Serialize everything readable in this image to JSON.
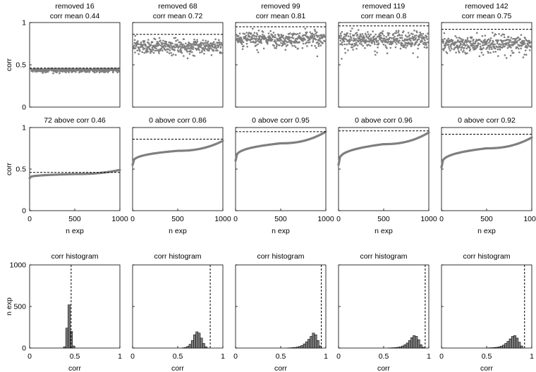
{
  "chart_data": {
    "type": "figure-grid",
    "rows": [
      {
        "kind": "scatter",
        "ylabel": "corr",
        "ylim": [
          0,
          1
        ],
        "yticks": [
          0,
          0.5,
          1
        ],
        "panels": [
          {
            "title1": "removed 16",
            "title2": "corr mean 0.44",
            "mean": 0.44,
            "spread": 0.02,
            "threshold": 0.46
          },
          {
            "title1": "removed 68",
            "title2": "corr mean 0.72",
            "mean": 0.72,
            "spread": 0.06,
            "threshold": 0.86
          },
          {
            "title1": "removed 99",
            "title2": "corr mean 0.81",
            "mean": 0.81,
            "spread": 0.06,
            "threshold": 0.95
          },
          {
            "title1": "removed 119",
            "title2": "corr mean 0.8",
            "mean": 0.8,
            "spread": 0.07,
            "threshold": 0.96
          },
          {
            "title1": "removed 142",
            "title2": "corr mean 0.75",
            "mean": 0.75,
            "spread": 0.07,
            "threshold": 0.92
          }
        ]
      },
      {
        "kind": "sorted-line",
        "ylabel": "corr",
        "xlabel": "n exp",
        "xlim": [
          0,
          1000
        ],
        "xticks": [
          0,
          500,
          1000
        ],
        "ylim": [
          0,
          1
        ],
        "yticks": [
          0,
          0.5,
          1
        ],
        "panels": [
          {
            "title": "72 above corr 0.46",
            "start": 0.39,
            "mid": 0.44,
            "end": 0.49,
            "threshold": 0.46
          },
          {
            "title": "0 above corr 0.86",
            "start": 0.55,
            "mid": 0.72,
            "end": 0.84,
            "threshold": 0.86
          },
          {
            "title": "0 above corr 0.95",
            "start": 0.6,
            "mid": 0.81,
            "end": 0.95,
            "threshold": 0.95
          },
          {
            "title": "0 above corr 0.96",
            "start": 0.55,
            "mid": 0.8,
            "end": 0.94,
            "threshold": 0.96
          },
          {
            "title": "0 above corr 0.92",
            "start": 0.52,
            "mid": 0.75,
            "end": 0.88,
            "threshold": 0.92
          }
        ]
      },
      {
        "kind": "histogram",
        "ylabel": "n exp",
        "xlabel": "corr",
        "xlim": [
          0,
          1
        ],
        "xticks": [
          0,
          0.5,
          1
        ],
        "ylim": [
          0,
          1000
        ],
        "yticks": [
          0,
          500,
          1000
        ],
        "bin_width": 0.025,
        "panels": [
          {
            "title": "corr histogram",
            "threshold": 0.46,
            "bins_start": 0.375,
            "counts": [
              15,
              240,
              520,
              200,
              25
            ]
          },
          {
            "title": "corr histogram",
            "threshold": 0.86,
            "bins_start": 0.55,
            "counts": [
              3,
              8,
              20,
              45,
              90,
              160,
              195,
              180,
              120,
              55,
              15
            ]
          },
          {
            "title": "corr histogram",
            "threshold": 0.95,
            "bins_start": 0.575,
            "counts": [
              2,
              3,
              5,
              8,
              12,
              20,
              30,
              50,
              75,
              105,
              140,
              180,
              160,
              90,
              25
            ]
          },
          {
            "title": "corr histogram",
            "threshold": 0.96,
            "bins_start": 0.55,
            "counts": [
              2,
              3,
              4,
              6,
              10,
              15,
              25,
              40,
              60,
              90,
              125,
              150,
              140,
              100,
              40,
              10
            ]
          },
          {
            "title": "corr histogram",
            "threshold": 0.92,
            "bins_start": 0.5,
            "counts": [
              2,
              3,
              4,
              6,
              9,
              14,
              22,
              35,
              55,
              80,
              110,
              140,
              150,
              120,
              70,
              25
            ]
          }
        ]
      }
    ]
  }
}
